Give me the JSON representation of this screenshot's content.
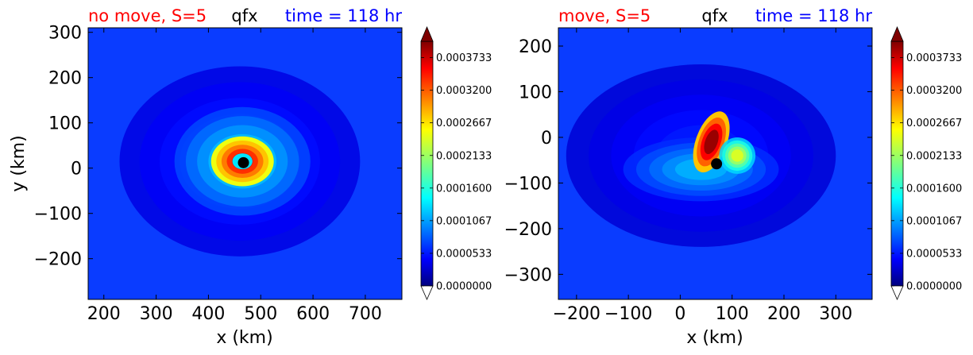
{
  "chart_data": [
    {
      "type": "heatmap",
      "variable": "qfx",
      "title_left": "no move, S=5",
      "title_center": "qfx",
      "title_right": "time = 118 hr",
      "xlabel": "x (km)",
      "ylabel": "y (km)",
      "xlim": [
        170,
        770
      ],
      "ylim": [
        -290,
        310
      ],
      "xticks": [
        200,
        300,
        400,
        500,
        600,
        700
      ],
      "yticks": [
        -200,
        -100,
        0,
        100,
        200,
        300
      ],
      "center_marker": {
        "x": 467,
        "y": 12
      },
      "features": [
        {
          "kind": "ring",
          "x": 465,
          "y": 15,
          "rx": 60,
          "ry": 55,
          "level": 0.00039
        },
        {
          "kind": "blob",
          "x": 465,
          "y": 15,
          "rx": 130,
          "ry": 120,
          "level": 0.00014
        },
        {
          "kind": "blob",
          "x": 460,
          "y": 15,
          "rx": 230,
          "ry": 210,
          "level": 7e-05
        }
      ]
    },
    {
      "type": "heatmap",
      "variable": "qfx",
      "title_left": "move, S=5",
      "title_center": "qfx",
      "title_right": "time = 118 hr",
      "xlabel": "x (km)",
      "ylabel": "",
      "xlim": [
        -235,
        370
      ],
      "ylim": [
        -355,
        240
      ],
      "xticks": [
        -200,
        -100,
        0,
        100,
        200,
        300
      ],
      "yticks": [
        -300,
        -200,
        -100,
        0,
        100,
        200
      ],
      "center_marker": {
        "x": 70,
        "y": -58
      },
      "features": [
        {
          "kind": "arc",
          "x": 60,
          "y": -10,
          "rx": 30,
          "ry": 70,
          "level": 0.00039
        },
        {
          "kind": "blob",
          "x": 110,
          "y": -40,
          "rx": 35,
          "ry": 40,
          "level": 0.00024
        },
        {
          "kind": "blob",
          "x": 40,
          "y": -70,
          "rx": 150,
          "ry": 70,
          "level": 0.00012
        },
        {
          "kind": "blob",
          "x": 40,
          "y": -40,
          "rx": 260,
          "ry": 200,
          "level": 6e-05
        }
      ]
    }
  ],
  "colorbar": {
    "ticks": [
      "0.0000000",
      "0.0000533",
      "0.0001067",
      "0.0001600",
      "0.0002133",
      "0.0002667",
      "0.0003200",
      "0.0003733"
    ],
    "min": 0.0,
    "max": 0.0004,
    "extend": "both"
  }
}
